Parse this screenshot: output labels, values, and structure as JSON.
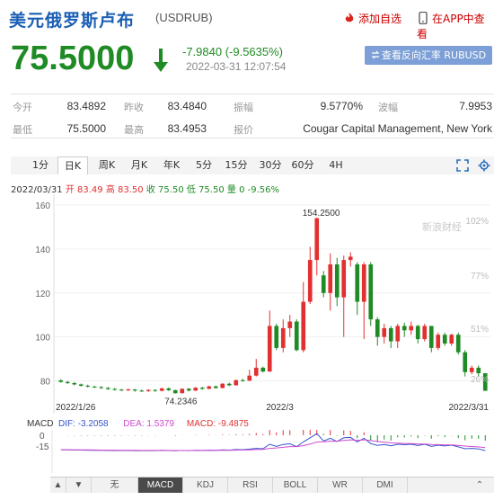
{
  "header": {
    "title": "美元俄罗斯卢布",
    "code": "(USDRUB)",
    "add_watch": "添加自选",
    "app_view": "在APP中查看"
  },
  "quote": {
    "price": "75.5000",
    "change": "-7.9840 (-9.5635%)",
    "time": "2022-03-31 12:07:54",
    "reverse_button": "查看反向汇率 RUBUSD"
  },
  "stats": {
    "open_label": "今开",
    "open": "83.4892",
    "prev_close_label": "昨收",
    "prev_close": "83.4840",
    "amplitude_label": "振幅",
    "amplitude": "9.5770%",
    "range_label": "波幅",
    "range": "7.9953",
    "low_label": "最低",
    "low": "75.5000",
    "high_label": "最高",
    "high": "83.4953",
    "quote_label": "报价",
    "quote_source": "Cougar Capital Management, New York"
  },
  "tabs": [
    "1分",
    "日K",
    "周K",
    "月K",
    "年K",
    "5分",
    "15分",
    "30分",
    "60分",
    "4H"
  ],
  "active_tab": "日K",
  "ohlc_line": {
    "date": "2022/03/31",
    "open_label": "开",
    "open": "83.49",
    "high_label": "高",
    "high": "83.50",
    "low_label": "低",
    "low": "75.50",
    "close_label": "收",
    "close": "75.50",
    "vol_label": "量",
    "vol": "0",
    "pct": "-9.56%"
  },
  "macd": {
    "label": "MACD",
    "dif": "DIF: -3.2058",
    "dea": "DEA: 1.5379",
    "macd": "MACD: -9.4875",
    "ticks": [
      "0",
      "-15"
    ]
  },
  "indicator_tabs": [
    "无",
    "MACD",
    "KDJ",
    "RSI",
    "BOLL",
    "WR",
    "DMI"
  ],
  "active_indicator": "MACD",
  "watermark": "新浪财经",
  "colors": {
    "up": "#e23030",
    "down": "#1f8b24",
    "title": "#1a5fb4",
    "button": "#7b9fd6"
  },
  "chart_data": {
    "type": "candlestick",
    "ylim": [
      70,
      160
    ],
    "y_ticks": [
      80,
      100,
      120,
      140,
      160
    ],
    "y_right_ticks": [
      "102%",
      "77%",
      "51%",
      "26%"
    ],
    "x_labels": [
      "2022/1/26",
      "2022/3",
      "2022/3/31"
    ],
    "annotations": [
      "154.2500",
      "74.2346"
    ],
    "candles": [
      [
        80.2,
        79.5,
        80.8,
        79.2
      ],
      [
        79.5,
        79.0,
        80.0,
        78.6
      ],
      [
        79.0,
        78.4,
        79.5,
        78.0
      ],
      [
        78.4,
        77.8,
        78.8,
        77.4
      ],
      [
        77.8,
        77.4,
        78.3,
        77.0
      ],
      [
        77.4,
        77.2,
        77.8,
        76.8
      ],
      [
        77.2,
        76.8,
        77.6,
        76.3
      ],
      [
        76.8,
        76.3,
        77.2,
        75.9
      ],
      [
        76.3,
        76.0,
        76.8,
        75.6
      ],
      [
        76.0,
        75.8,
        76.4,
        75.4
      ],
      [
        75.8,
        76.1,
        76.5,
        75.4
      ],
      [
        76.1,
        75.6,
        76.3,
        75.1
      ],
      [
        75.6,
        75.4,
        76.0,
        75.0
      ],
      [
        75.4,
        75.9,
        76.2,
        75.0
      ],
      [
        75.9,
        75.5,
        76.1,
        75.0
      ],
      [
        75.5,
        76.6,
        76.9,
        75.2
      ],
      [
        76.6,
        75.8,
        77.0,
        75.4
      ],
      [
        75.8,
        74.4,
        76.0,
        74.23
      ],
      [
        74.4,
        76.4,
        76.6,
        74.3
      ],
      [
        76.4,
        75.6,
        76.8,
        75.2
      ],
      [
        75.6,
        76.9,
        77.2,
        75.4
      ],
      [
        76.9,
        76.4,
        77.3,
        76.0
      ],
      [
        76.4,
        77.5,
        77.8,
        76.2
      ],
      [
        77.5,
        76.8,
        77.9,
        76.4
      ],
      [
        76.8,
        78.7,
        79.0,
        76.5
      ],
      [
        78.7,
        78.0,
        79.2,
        77.6
      ],
      [
        78.0,
        80.3,
        80.7,
        77.8
      ],
      [
        80.3,
        80.1,
        81.0,
        79.6
      ],
      [
        80.1,
        82.4,
        85.1,
        80.0
      ],
      [
        82.4,
        86.0,
        90.0,
        82.0
      ],
      [
        86.0,
        84.3,
        86.5,
        83.8
      ],
      [
        84.3,
        105.0,
        112.0,
        84.0
      ],
      [
        105.0,
        95.0,
        106.0,
        94.0
      ],
      [
        95.0,
        104.0,
        108.0,
        93.0
      ],
      [
        104.0,
        107.0,
        110.0,
        100.0
      ],
      [
        107.0,
        94.0,
        108.0,
        93.5
      ],
      [
        94.0,
        116.0,
        125.0,
        93.0
      ],
      [
        116.0,
        135.0,
        141.0,
        115.0
      ],
      [
        135.0,
        154.0,
        154.25,
        128.0
      ],
      [
        128.0,
        120.0,
        130.0,
        118.0
      ],
      [
        120.0,
        133.0,
        138.0,
        112.0
      ],
      [
        133.0,
        118.0,
        136.0,
        114.0
      ],
      [
        118.0,
        135.0,
        137.0,
        100.0
      ],
      [
        135.0,
        136.5,
        138.5,
        132.0
      ],
      [
        133.0,
        116.0,
        134.0,
        110.0
      ],
      [
        116.0,
        133.0,
        134.0,
        99.0
      ],
      [
        133.0,
        108.0,
        134.0,
        105.0
      ],
      [
        108.0,
        100.0,
        109.0,
        96.0
      ],
      [
        100.0,
        104.0,
        106.0,
        97.0
      ],
      [
        104.0,
        98.0,
        105.0,
        95.0
      ],
      [
        98.0,
        105.0,
        106.0,
        95.0
      ],
      [
        105.0,
        103.0,
        106.5,
        100.0
      ],
      [
        103.0,
        105.0,
        107.0,
        101.0
      ],
      [
        105.0,
        99.0,
        105.5,
        97.0
      ],
      [
        99.0,
        105.0,
        106.0,
        98.0
      ],
      [
        105.0,
        95.0,
        105.0,
        93.0
      ],
      [
        95.0,
        101.0,
        102.0,
        94.0
      ],
      [
        101.0,
        97.0,
        102.0,
        96.0
      ],
      [
        97.0,
        101.0,
        101.5,
        96.0
      ],
      [
        101.0,
        93.0,
        102.0,
        92.0
      ],
      [
        93.0,
        84.0,
        94.0,
        82.0
      ],
      [
        84.0,
        86.0,
        87.0,
        83.0
      ],
      [
        86.0,
        83.5,
        87.0,
        82.0
      ],
      [
        83.49,
        75.5,
        83.5,
        75.5
      ]
    ]
  }
}
